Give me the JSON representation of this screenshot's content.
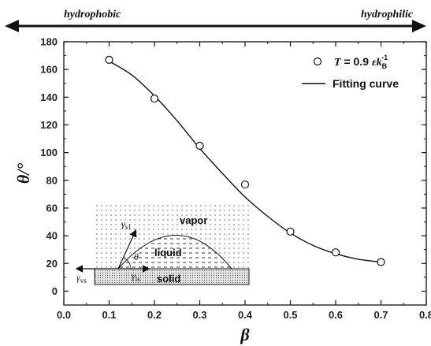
{
  "header": {
    "left_label": "hydrophobic",
    "right_label": "hydrophilic"
  },
  "chart_data": {
    "type": "scatter",
    "xlabel": "β",
    "ylabel": "θ/°",
    "xlim": [
      0.0,
      0.8
    ],
    "ylim": [
      -10,
      180
    ],
    "xticks": [
      0.0,
      0.1,
      0.2,
      0.3,
      0.4,
      0.5,
      0.6,
      0.7,
      0.8
    ],
    "yticks": [
      0,
      20,
      40,
      60,
      80,
      100,
      120,
      140,
      160,
      180
    ],
    "grid": false,
    "legend_position": "top-right",
    "series": [
      {
        "name": "T = 0.9 εk_B^-1",
        "kind": "markers",
        "marker": "open-circle",
        "x": [
          0.1,
          0.2,
          0.3,
          0.4,
          0.5,
          0.6,
          0.7
        ],
        "y": [
          167,
          139,
          105,
          77,
          43,
          28,
          21
        ]
      },
      {
        "name": "Fitting curve",
        "kind": "line",
        "x": [
          0.1,
          0.15,
          0.2,
          0.25,
          0.3,
          0.35,
          0.4,
          0.45,
          0.5,
          0.55,
          0.6,
          0.65,
          0.7
        ],
        "y": [
          166,
          156,
          141,
          123,
          103,
          85,
          68,
          54,
          42,
          33,
          27,
          23,
          21
        ]
      }
    ],
    "legend": {
      "markers_label_T": "T",
      "markers_label_mid": " = 0.9 ",
      "markers_label_eps": "ε",
      "markers_label_k": "k",
      "markers_label_sub": "B",
      "markers_label_sup": "-1",
      "line_label": "Fitting curve"
    }
  },
  "inset": {
    "vapor_label": "vapor",
    "liquid_label": "liquid",
    "solid_label": "solid",
    "theta_label": "θ",
    "gamma_vl": "γ",
    "gamma_vl_sub": "vl",
    "gamma_ls": "γ",
    "gamma_ls_sub": "ls",
    "gamma_vs": "γ",
    "gamma_vs_sub": "vs"
  }
}
